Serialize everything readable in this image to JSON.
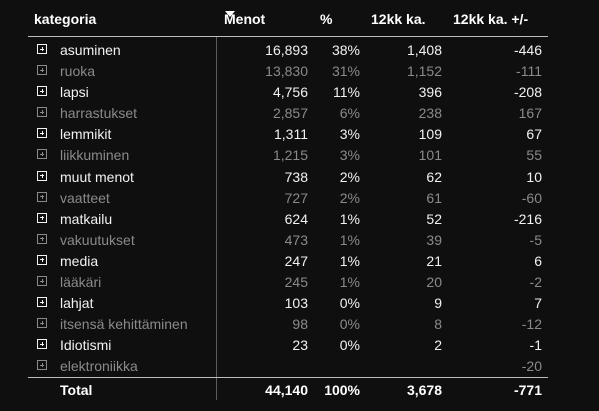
{
  "headers": {
    "kategoria": "kategoria",
    "menot": "Menot",
    "pct": "%",
    "kk12": "12kk ka.",
    "kk12diff": "12kk ka. +/-"
  },
  "rows": [
    {
      "name": "asuminen",
      "menot": "16,893",
      "pct": "38%",
      "kk12": "1,408",
      "diff": "-446",
      "style": "bright"
    },
    {
      "name": "ruoka",
      "menot": "13,830",
      "pct": "31%",
      "kk12": "1,152",
      "diff": "-111",
      "style": "dim"
    },
    {
      "name": "lapsi",
      "menot": "4,756",
      "pct": "11%",
      "kk12": "396",
      "diff": "-208",
      "style": "bright"
    },
    {
      "name": "harrastukset",
      "menot": "2,857",
      "pct": "6%",
      "kk12": "238",
      "diff": "167",
      "style": "dim"
    },
    {
      "name": "lemmikit",
      "menot": "1,311",
      "pct": "3%",
      "kk12": "109",
      "diff": "67",
      "style": "bright"
    },
    {
      "name": "liikkuminen",
      "menot": "1,215",
      "pct": "3%",
      "kk12": "101",
      "diff": "55",
      "style": "dim"
    },
    {
      "name": "muut menot",
      "menot": "738",
      "pct": "2%",
      "kk12": "62",
      "diff": "10",
      "style": "bright"
    },
    {
      "name": "vaatteet",
      "menot": "727",
      "pct": "2%",
      "kk12": "61",
      "diff": "-60",
      "style": "dim"
    },
    {
      "name": "matkailu",
      "menot": "624",
      "pct": "1%",
      "kk12": "52",
      "diff": "-216",
      "style": "bright"
    },
    {
      "name": "vakuutukset",
      "menot": "473",
      "pct": "1%",
      "kk12": "39",
      "diff": "-5",
      "style": "dim"
    },
    {
      "name": "media",
      "menot": "247",
      "pct": "1%",
      "kk12": "21",
      "diff": "6",
      "style": "bright"
    },
    {
      "name": "lääkäri",
      "menot": "245",
      "pct": "1%",
      "kk12": "20",
      "diff": "-2",
      "style": "dim"
    },
    {
      "name": "lahjat",
      "menot": "103",
      "pct": "0%",
      "kk12": "9",
      "diff": "7",
      "style": "bright"
    },
    {
      "name": "itsensä kehittäminen",
      "menot": "98",
      "pct": "0%",
      "kk12": "8",
      "diff": "-12",
      "style": "dim"
    },
    {
      "name": "Idiotismi",
      "menot": "23",
      "pct": "0%",
      "kk12": "2",
      "diff": "-1",
      "style": "bright"
    },
    {
      "name": "elektroniikka",
      "menot": "",
      "pct": "",
      "kk12": "",
      "diff": "-20",
      "style": "dim"
    }
  ],
  "total": {
    "label": "Total",
    "menot": "44,140",
    "pct": "100%",
    "kk12": "3,678",
    "diff": "-771"
  },
  "colors": {
    "background": "#0f0f10",
    "text_bright": "#f2f2f2",
    "text_dim": "#8a8a8a"
  },
  "icons": {
    "expand": "plus-square-icon",
    "sort": "sort-descending-icon"
  }
}
